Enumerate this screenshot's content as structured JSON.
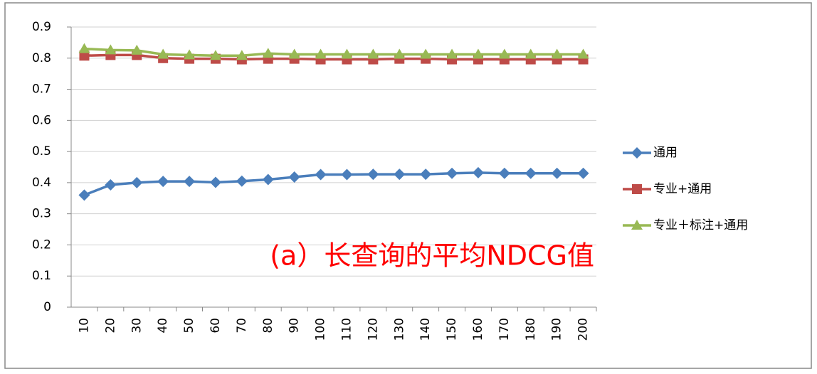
{
  "chart_data": {
    "type": "line",
    "categories": [
      "10",
      "20",
      "30",
      "40",
      "50",
      "60",
      "70",
      "80",
      "90",
      "100",
      "110",
      "120",
      "130",
      "140",
      "150",
      "160",
      "170",
      "180",
      "190",
      "200"
    ],
    "series": [
      {
        "name": "通用",
        "color": "#4a7ebb",
        "marker": "diamond",
        "values": [
          0.36,
          0.393,
          0.4,
          0.404,
          0.404,
          0.401,
          0.405,
          0.41,
          0.418,
          0.426,
          0.426,
          0.427,
          0.427,
          0.427,
          0.43,
          0.432,
          0.43,
          0.43,
          0.43,
          0.43
        ]
      },
      {
        "name": "专业+通用",
        "color": "#be4b48",
        "marker": "square",
        "values": [
          0.808,
          0.81,
          0.81,
          0.8,
          0.798,
          0.798,
          0.796,
          0.798,
          0.798,
          0.796,
          0.796,
          0.796,
          0.798,
          0.798,
          0.796,
          0.796,
          0.796,
          0.796,
          0.796,
          0.796
        ]
      },
      {
        "name": "专业＋标注+通用",
        "color": "#98b954",
        "marker": "triangle",
        "values": [
          0.83,
          0.826,
          0.825,
          0.812,
          0.81,
          0.808,
          0.808,
          0.815,
          0.812,
          0.812,
          0.812,
          0.812,
          0.812,
          0.812,
          0.812,
          0.812,
          0.812,
          0.812,
          0.812,
          0.812
        ]
      }
    ],
    "ylim": [
      0,
      0.9
    ],
    "yticks": [
      0,
      0.1,
      0.2,
      0.3,
      0.4,
      0.5,
      0.6,
      0.7,
      0.8,
      0.9
    ],
    "grid": true,
    "legend": "right",
    "annotation": "(a）长查询的平均NDCG值",
    "annotation_color": "#ff0000"
  }
}
